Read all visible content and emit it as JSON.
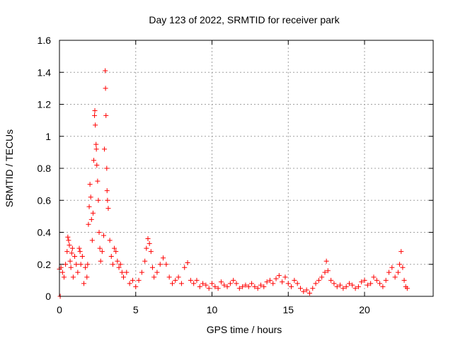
{
  "chart_data": {
    "type": "scatter",
    "title": "Day 123 of 2022, SRMTID for receiver park",
    "xlabel": "GPS time / hours",
    "ylabel": "SRMTID / TECUs",
    "xlim": [
      0,
      24.5
    ],
    "ylim": [
      0,
      1.6
    ],
    "xticks": [
      0,
      5,
      10,
      15,
      20
    ],
    "yticks": [
      0,
      0.2,
      0.4,
      0.6,
      0.8,
      1,
      1.2,
      1.4,
      1.6
    ],
    "ytick_labels": [
      "0",
      "0.2",
      "0.4",
      "0.6",
      "0.8",
      "1",
      "1.2",
      "1.4",
      "1.6"
    ],
    "xtick_labels": [
      "0",
      "5",
      "10",
      "15",
      "20"
    ],
    "grid": true,
    "marker": "+",
    "color": "#ff0000",
    "series": [
      {
        "name": "SRMTID",
        "points": [
          [
            0.0,
            0.17
          ],
          [
            0.05,
            0.0
          ],
          [
            0.1,
            0.18
          ],
          [
            0.2,
            0.15
          ],
          [
            0.3,
            0.12
          ],
          [
            0.4,
            0.2
          ],
          [
            0.5,
            0.28
          ],
          [
            0.55,
            0.37
          ],
          [
            0.6,
            0.35
          ],
          [
            0.65,
            0.32
          ],
          [
            0.7,
            0.22
          ],
          [
            0.75,
            0.18
          ],
          [
            0.8,
            0.27
          ],
          [
            0.85,
            0.3
          ],
          [
            0.9,
            0.12
          ],
          [
            1.0,
            0.25
          ],
          [
            1.1,
            0.2
          ],
          [
            1.2,
            0.15
          ],
          [
            1.3,
            0.3
          ],
          [
            1.35,
            0.28
          ],
          [
            1.4,
            0.2
          ],
          [
            1.5,
            0.25
          ],
          [
            1.6,
            0.08
          ],
          [
            1.7,
            0.18
          ],
          [
            1.8,
            0.12
          ],
          [
            1.85,
            0.2
          ],
          [
            1.9,
            0.45
          ],
          [
            1.95,
            0.56
          ],
          [
            2.0,
            0.7
          ],
          [
            2.05,
            0.62
          ],
          [
            2.1,
            0.48
          ],
          [
            2.15,
            0.35
          ],
          [
            2.2,
            0.52
          ],
          [
            2.25,
            0.85
          ],
          [
            2.3,
            1.13
          ],
          [
            2.32,
            1.16
          ],
          [
            2.35,
            1.07
          ],
          [
            2.4,
            0.95
          ],
          [
            2.42,
            0.92
          ],
          [
            2.45,
            0.82
          ],
          [
            2.5,
            0.72
          ],
          [
            2.55,
            0.6
          ],
          [
            2.6,
            0.4
          ],
          [
            2.65,
            0.3
          ],
          [
            2.7,
            0.22
          ],
          [
            2.8,
            0.28
          ],
          [
            2.9,
            0.38
          ],
          [
            2.95,
            0.92
          ],
          [
            3.0,
            1.41
          ],
          [
            3.02,
            1.3
          ],
          [
            3.05,
            1.13
          ],
          [
            3.1,
            0.8
          ],
          [
            3.12,
            0.66
          ],
          [
            3.15,
            0.6
          ],
          [
            3.2,
            0.55
          ],
          [
            3.3,
            0.35
          ],
          [
            3.4,
            0.25
          ],
          [
            3.5,
            0.2
          ],
          [
            3.6,
            0.3
          ],
          [
            3.7,
            0.28
          ],
          [
            3.8,
            0.22
          ],
          [
            3.9,
            0.18
          ],
          [
            4.0,
            0.2
          ],
          [
            4.1,
            0.15
          ],
          [
            4.2,
            0.12
          ],
          [
            4.4,
            0.15
          ],
          [
            4.6,
            0.08
          ],
          [
            4.8,
            0.1
          ],
          [
            5.0,
            0.06
          ],
          [
            5.2,
            0.1
          ],
          [
            5.4,
            0.15
          ],
          [
            5.6,
            0.22
          ],
          [
            5.7,
            0.3
          ],
          [
            5.8,
            0.36
          ],
          [
            5.9,
            0.33
          ],
          [
            6.0,
            0.28
          ],
          [
            6.1,
            0.18
          ],
          [
            6.2,
            0.12
          ],
          [
            6.4,
            0.15
          ],
          [
            6.6,
            0.2
          ],
          [
            6.8,
            0.24
          ],
          [
            7.0,
            0.2
          ],
          [
            7.2,
            0.12
          ],
          [
            7.4,
            0.08
          ],
          [
            7.6,
            0.1
          ],
          [
            7.8,
            0.12
          ],
          [
            8.0,
            0.08
          ],
          [
            8.2,
            0.18
          ],
          [
            8.4,
            0.21
          ],
          [
            8.6,
            0.1
          ],
          [
            8.8,
            0.08
          ],
          [
            9.0,
            0.1
          ],
          [
            9.2,
            0.06
          ],
          [
            9.4,
            0.08
          ],
          [
            9.6,
            0.07
          ],
          [
            9.8,
            0.05
          ],
          [
            10.0,
            0.08
          ],
          [
            10.2,
            0.06
          ],
          [
            10.4,
            0.05
          ],
          [
            10.6,
            0.09
          ],
          [
            10.8,
            0.07
          ],
          [
            11.0,
            0.06
          ],
          [
            11.2,
            0.08
          ],
          [
            11.4,
            0.1
          ],
          [
            11.6,
            0.08
          ],
          [
            11.8,
            0.05
          ],
          [
            12.0,
            0.06
          ],
          [
            12.2,
            0.07
          ],
          [
            12.4,
            0.06
          ],
          [
            12.6,
            0.08
          ],
          [
            12.8,
            0.06
          ],
          [
            13.0,
            0.05
          ],
          [
            13.2,
            0.07
          ],
          [
            13.4,
            0.06
          ],
          [
            13.6,
            0.09
          ],
          [
            13.8,
            0.1
          ],
          [
            14.0,
            0.08
          ],
          [
            14.2,
            0.11
          ],
          [
            14.4,
            0.13
          ],
          [
            14.6,
            0.09
          ],
          [
            14.8,
            0.12
          ],
          [
            15.0,
            0.08
          ],
          [
            15.2,
            0.06
          ],
          [
            15.4,
            0.1
          ],
          [
            15.6,
            0.08
          ],
          [
            15.8,
            0.05
          ],
          [
            16.0,
            0.03
          ],
          [
            16.2,
            0.04
          ],
          [
            16.4,
            0.02
          ],
          [
            16.6,
            0.05
          ],
          [
            16.8,
            0.08
          ],
          [
            17.0,
            0.1
          ],
          [
            17.2,
            0.12
          ],
          [
            17.4,
            0.15
          ],
          [
            17.5,
            0.22
          ],
          [
            17.6,
            0.16
          ],
          [
            17.8,
            0.1
          ],
          [
            18.0,
            0.08
          ],
          [
            18.2,
            0.06
          ],
          [
            18.4,
            0.07
          ],
          [
            18.6,
            0.05
          ],
          [
            18.8,
            0.06
          ],
          [
            19.0,
            0.08
          ],
          [
            19.2,
            0.07
          ],
          [
            19.4,
            0.05
          ],
          [
            19.6,
            0.06
          ],
          [
            19.8,
            0.09
          ],
          [
            20.0,
            0.1
          ],
          [
            20.2,
            0.07
          ],
          [
            20.4,
            0.08
          ],
          [
            20.6,
            0.12
          ],
          [
            20.8,
            0.1
          ],
          [
            21.0,
            0.08
          ],
          [
            21.2,
            0.06
          ],
          [
            21.4,
            0.1
          ],
          [
            21.6,
            0.15
          ],
          [
            21.8,
            0.18
          ],
          [
            22.0,
            0.12
          ],
          [
            22.2,
            0.15
          ],
          [
            22.3,
            0.2
          ],
          [
            22.4,
            0.28
          ],
          [
            22.5,
            0.18
          ],
          [
            22.6,
            0.1
          ],
          [
            22.7,
            0.06
          ],
          [
            22.8,
            0.05
          ]
        ]
      }
    ]
  }
}
